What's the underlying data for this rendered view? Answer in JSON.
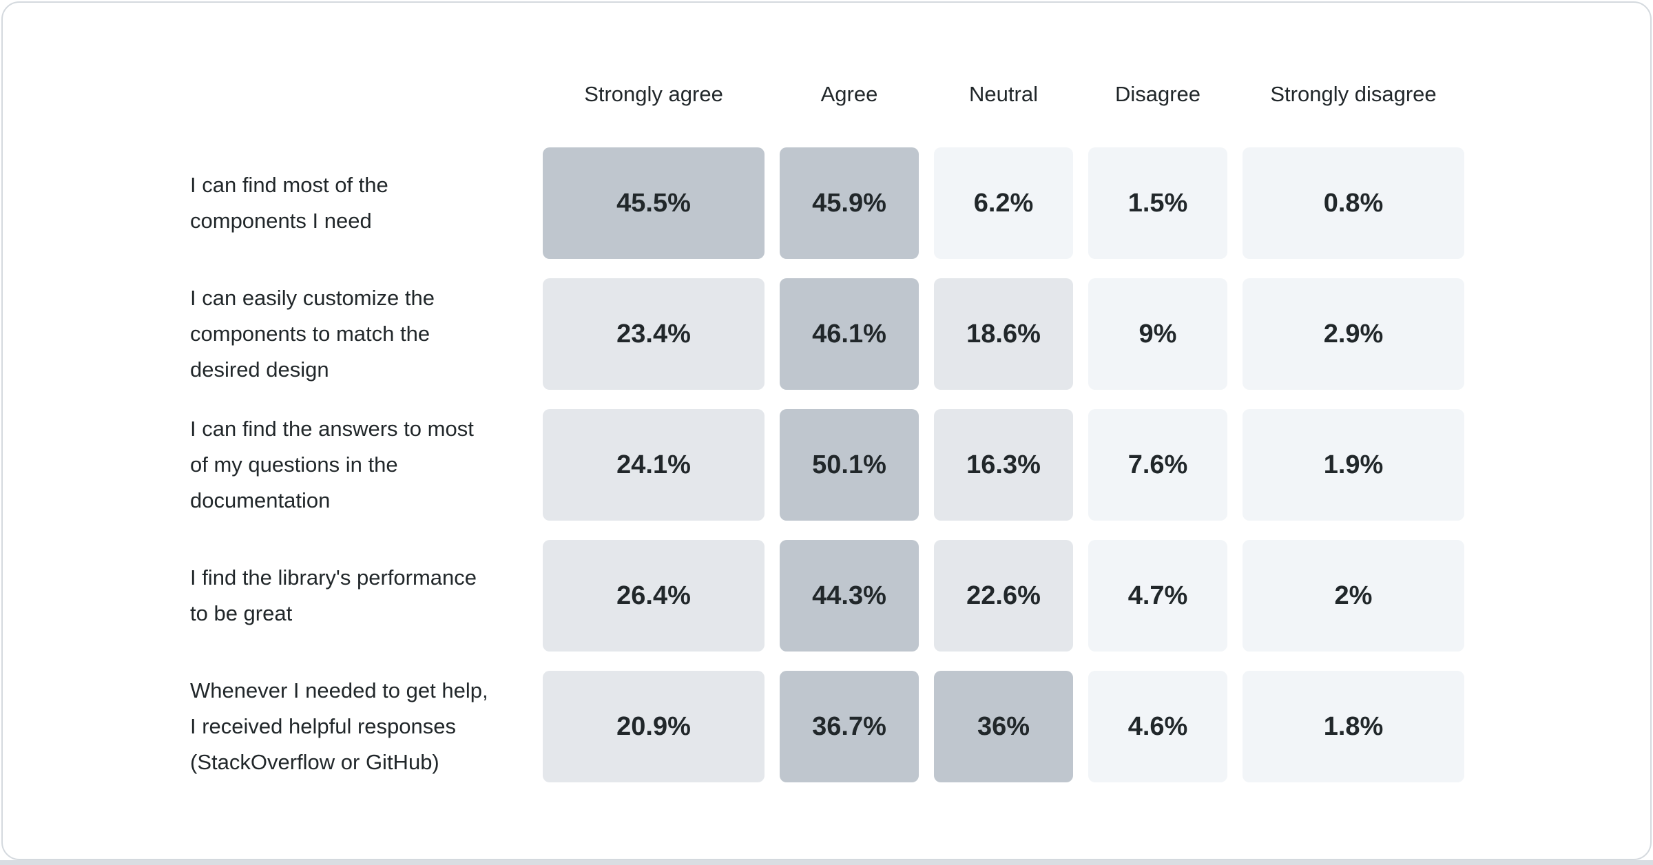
{
  "page": {
    "card_background": "#ffffff",
    "card_border_color": "#d4d9de",
    "background_strip_color": "#d9dde2",
    "text_color": "#21272a"
  },
  "chart_data": {
    "type": "heatmap",
    "columns": [
      "Strongly agree",
      "Agree",
      "Neutral",
      "Disagree",
      "Strongly disagree"
    ],
    "rows": [
      {
        "label": "I can find most of the components I need",
        "label_lines": [
          "I can find most of the",
          "components I need"
        ],
        "values": [
          45.5,
          45.9,
          6.2,
          1.5,
          0.8
        ],
        "display_values": [
          "45.5%",
          "45.9%",
          "6.2%",
          "1.5%",
          "0.8%"
        ]
      },
      {
        "label": "I can easily customize the components to match the desired design",
        "label_lines": [
          "I can easily customize the",
          "components to match the",
          "desired design"
        ],
        "values": [
          23.4,
          46.1,
          18.6,
          9,
          2.9
        ],
        "display_values": [
          "23.4%",
          "46.1%",
          "18.6%",
          "9%",
          "2.9%"
        ]
      },
      {
        "label": "I can find the answers to most of my questions in the documentation",
        "label_lines": [
          "I can find the answers to most",
          "of my questions in the",
          "documentation"
        ],
        "values": [
          24.1,
          50.1,
          16.3,
          7.6,
          1.9
        ],
        "display_values": [
          "24.1%",
          "50.1%",
          "16.3%",
          "7.6%",
          "1.9%"
        ]
      },
      {
        "label": "I find the library's performance to be great",
        "label_lines": [
          "I find the library's performance",
          "to be great"
        ],
        "values": [
          26.4,
          44.3,
          22.6,
          4.7,
          2
        ],
        "display_values": [
          "26.4%",
          "44.3%",
          "22.6%",
          "4.7%",
          "2%"
        ]
      },
      {
        "label": "Whenever I needed to get help, I received helpful responses (StackOverflow or GitHub)",
        "label_lines": [
          "Whenever I needed to get help,",
          "I received helpful responses",
          "(StackOverflow or GitHub)"
        ],
        "values": [
          20.9,
          36.7,
          36,
          4.6,
          1.8
        ],
        "display_values": [
          "20.9%",
          "36.7%",
          "36%",
          "4.6%",
          "1.8%"
        ]
      }
    ],
    "color_scale": {
      "high": {
        "min_value": 30,
        "color": "#bfc6ce"
      },
      "mid": {
        "min_value": 10,
        "color": "#e4e7eb"
      },
      "low": {
        "min_value": 0,
        "color": "#f2f5f8"
      }
    },
    "legend_position": "none",
    "grid": "off"
  }
}
